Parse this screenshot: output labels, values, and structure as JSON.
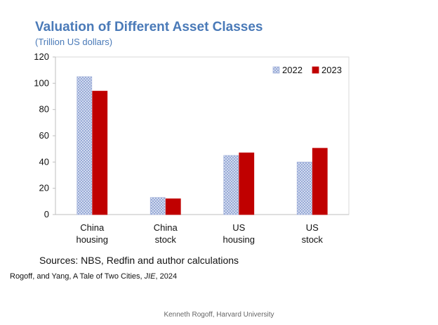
{
  "title": "Valuation of Different Asset Classes",
  "subtitle": "(Trillion US dollars)",
  "sources": "Sources: NBS, Redfin and author calculations",
  "citation": {
    "before": "Rogoff, and Yang, A Tale of Two Cities, ",
    "journal": "JIE",
    "after": ", 2024"
  },
  "footer": "Kenneth  Rogoff, Harvard University",
  "colors": {
    "series_2022": "#dfe6f5",
    "series_2022_hatch": "#7f95cc",
    "series_2023": "#c00000"
  },
  "chart_data": {
    "type": "bar",
    "title": "Valuation of Different Asset Classes",
    "subtitle": "(Trillion US dollars)",
    "categories": [
      [
        "China",
        "housing"
      ],
      [
        "China",
        "stock"
      ],
      [
        "US",
        "housing"
      ],
      [
        "US",
        "stock"
      ]
    ],
    "series": [
      {
        "name": "2022",
        "values": [
          105,
          13,
          45,
          40
        ]
      },
      {
        "name": "2023",
        "values": [
          94,
          12,
          47,
          50.5
        ]
      }
    ],
    "ylim": [
      0,
      120
    ],
    "yticks": [
      0,
      20,
      40,
      60,
      80,
      100,
      120
    ],
    "ylabel": "",
    "xlabel": "",
    "legend": "top-right"
  }
}
